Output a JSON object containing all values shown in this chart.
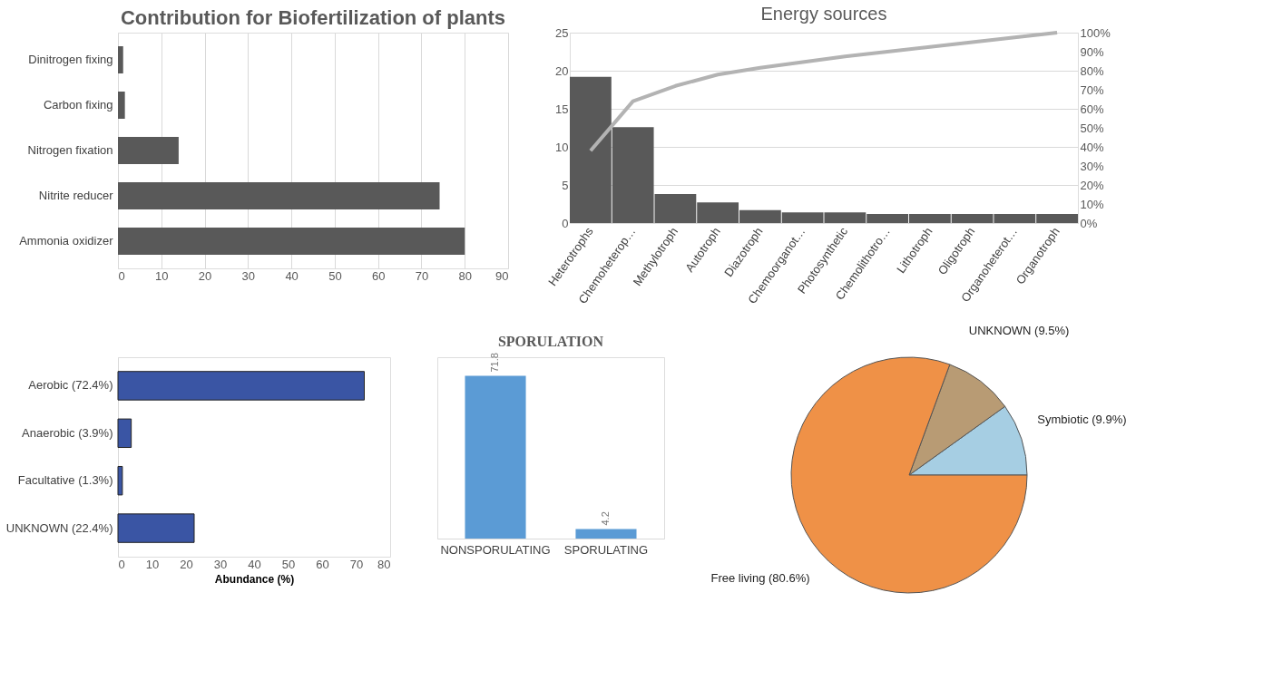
{
  "chart_data": [
    {
      "type": "bar",
      "orientation": "horizontal",
      "title": "Contribution for Biofertilization of plants",
      "categories": [
        "Dinitrogen fixing",
        "Carbon fixing",
        "Nitrogen fixation",
        "Nitrite reducer",
        "Ammonia oxidizer"
      ],
      "series": [
        {
          "color": "#595959",
          "values": [
            1.2,
            1.6,
            14,
            74.2,
            80
          ]
        }
      ],
      "xlim": [
        0,
        90
      ],
      "xticks": [
        0,
        10,
        20,
        30,
        40,
        50,
        60,
        70,
        80,
        90
      ],
      "grid": "x"
    },
    {
      "type": "bar",
      "title": "Energy sources",
      "categories": [
        "Heterotrophs",
        "Chemoheterop…",
        "Methylotroph",
        "Autotroph",
        "Diazotroph",
        "Chemoorganot…",
        "Photosynthetic",
        "Chemolithotro…",
        "Lithotroph",
        "Oligotroph",
        "Organoheterot…",
        "Organotroph"
      ],
      "series": [
        {
          "color": "#595959",
          "values": [
            19.2,
            12.6,
            3.8,
            2.7,
            1.7,
            1.4,
            1.4,
            1.2,
            1.2,
            1.2,
            1.2,
            1.2
          ]
        },
        {
          "type": "line",
          "axis": "y2",
          "color": "#b3b3b3",
          "values": [
            38,
            64,
            72,
            78,
            81.5,
            84.5,
            87.5,
            90,
            92.5,
            95,
            97.5,
            100
          ]
        }
      ],
      "ylim": [
        0,
        25
      ],
      "yticks": [
        0,
        5,
        10,
        15,
        20,
        25
      ],
      "y2lim": [
        0,
        100
      ],
      "y2ticks": [
        {
          "value": 0,
          "label": "0%"
        },
        {
          "value": 10,
          "label": "10%"
        },
        {
          "value": 20,
          "label": "20%"
        },
        {
          "value": 30,
          "label": "30%"
        },
        {
          "value": 40,
          "label": "40%"
        },
        {
          "value": 50,
          "label": "50%"
        },
        {
          "value": 60,
          "label": "60%"
        },
        {
          "value": 70,
          "label": "70%"
        },
        {
          "value": 80,
          "label": "80%"
        },
        {
          "value": 90,
          "label": "90%"
        },
        {
          "value": 100,
          "label": "100%"
        }
      ],
      "grid": "y"
    },
    {
      "type": "bar",
      "orientation": "horizontal",
      "xlabel": "Abundance (%)",
      "categories": [
        "Aerobic (72.4%)",
        "Anaerobic (3.9%)",
        "Facultative (1.3%)",
        "UNKNOWN (22.4%)"
      ],
      "series": [
        {
          "color": "#3a55a4",
          "values": [
            72.4,
            3.9,
            1.3,
            22.4
          ]
        }
      ],
      "xlim": [
        0,
        80
      ],
      "xticks": [
        0,
        10,
        20,
        30,
        40,
        50,
        60,
        70,
        80
      ]
    },
    {
      "type": "bar",
      "title": "SPORULATION",
      "categories": [
        "NONSPORULATING",
        "SPORULATING"
      ],
      "series": [
        {
          "color": "#5b9bd5",
          "values": [
            71.8,
            4.2
          ]
        }
      ],
      "data_labels": true,
      "tick_labels": "x"
    },
    {
      "type": "pie",
      "categories": [
        "Symbiotic (9.9%)",
        "UNKNOWN (9.5%)",
        "Free living (80.6%)"
      ],
      "values": [
        9.9,
        9.5,
        80.6
      ],
      "colors": [
        "#a6cee3",
        "#b89b74",
        "#ef9147"
      ]
    }
  ]
}
